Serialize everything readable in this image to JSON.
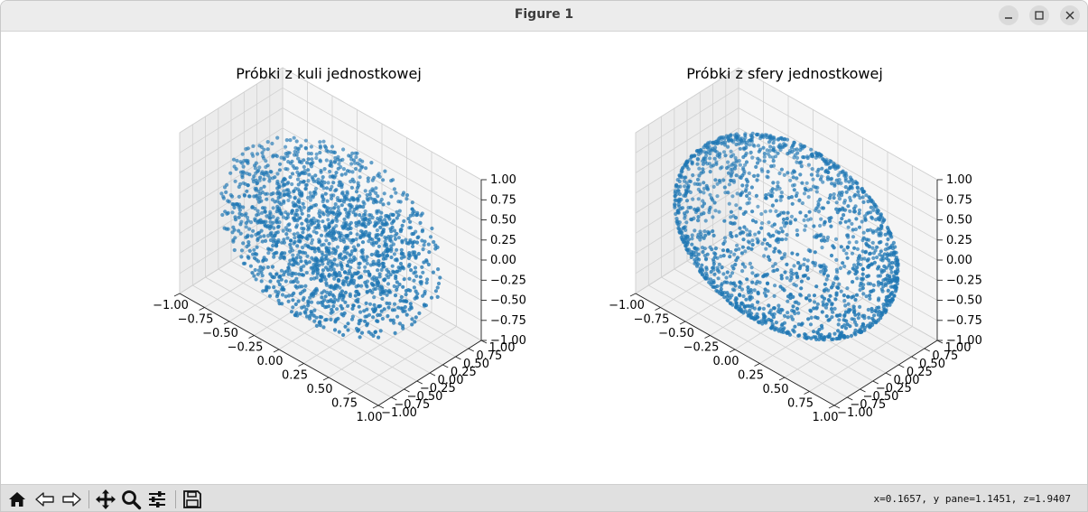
{
  "window": {
    "title": "Figure 1"
  },
  "toolbar": {
    "icons": [
      "home-icon",
      "back-icon",
      "forward-icon",
      "pan-icon",
      "zoom-icon",
      "configure-subplots-icon",
      "save-icon"
    ],
    "status": "x=0.1657, y pane=1.1451, z=1.9407"
  },
  "chart_data": [
    {
      "type": "scatter",
      "subtype": "3d",
      "title": "Próbki z kuli jednostkowej",
      "distribution": "uniform in unit ball",
      "n_points_approx": 2000,
      "marker_color": "#1f77b4",
      "xlim": [
        -1,
        1
      ],
      "ylim": [
        -1,
        1
      ],
      "zlim": [
        -1,
        1
      ],
      "xticks": [
        "−1.00",
        "−0.75",
        "−0.50",
        "−0.25",
        "0.00",
        "0.25",
        "0.50",
        "0.75",
        "1.00"
      ],
      "yticks": [
        "−1.00",
        "−0.75",
        "−0.50",
        "−0.25",
        "0.00",
        "0.25",
        "0.50",
        "0.75",
        "1.00"
      ],
      "zticks": [
        "−1.00",
        "−0.75",
        "−0.50",
        "−0.25",
        "0.00",
        "0.25",
        "0.50",
        "0.75",
        "1.00"
      ],
      "grid": true
    },
    {
      "type": "scatter",
      "subtype": "3d",
      "title": "Próbki z sfery jednostkowej",
      "distribution": "uniform on unit sphere surface",
      "n_points_approx": 2000,
      "marker_color": "#1f77b4",
      "xlim": [
        -1,
        1
      ],
      "ylim": [
        -1,
        1
      ],
      "zlim": [
        -1,
        1
      ],
      "xticks": [
        "−1.00",
        "−0.75",
        "−0.50",
        "−0.25",
        "0.00",
        "0.25",
        "0.50",
        "0.75",
        "1.00"
      ],
      "yticks": [
        "−1.00",
        "−0.75",
        "−0.50",
        "−0.25",
        "0.00",
        "0.25",
        "0.50",
        "0.75",
        "1.00"
      ],
      "zticks": [
        "−1.00",
        "−0.75",
        "−0.50",
        "−0.25",
        "0.00",
        "0.25",
        "0.50",
        "0.75",
        "1.00"
      ],
      "grid": true
    }
  ]
}
